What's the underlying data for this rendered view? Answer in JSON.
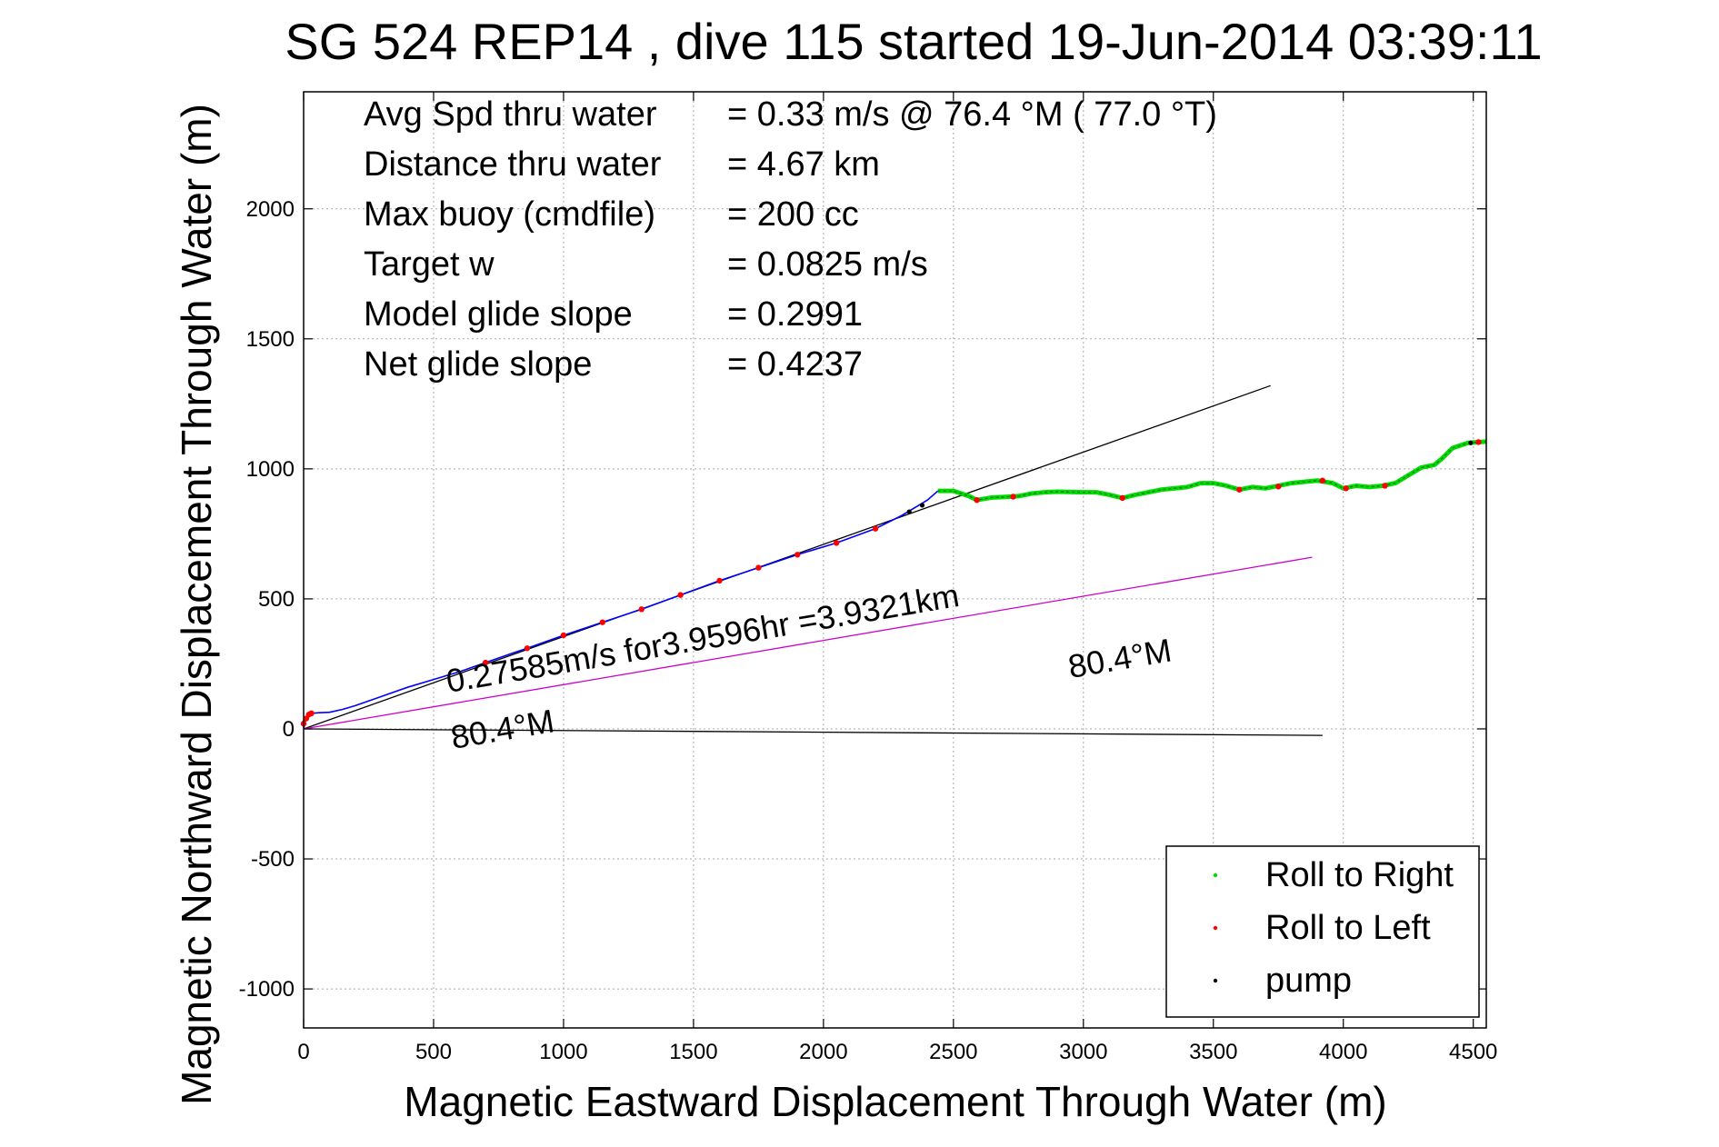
{
  "chart_data": {
    "type": "line",
    "title": "SG 524   REP14  , dive 115 started 19-Jun-2014 03:39:11",
    "xlabel": "Magnetic Eastward Displacement Through Water (m)",
    "ylabel": "Magnetic Northward Displacement Through Water (m)",
    "xlim": [
      0,
      4550
    ],
    "ylim": [
      -1150,
      2450
    ],
    "grid": true,
    "xticks": [
      0,
      500,
      1000,
      1500,
      2000,
      2500,
      3000,
      3500,
      4000,
      4500
    ],
    "yticks": [
      -1000,
      -500,
      0,
      500,
      1000,
      1500,
      2000
    ],
    "info_lines": [
      {
        "label": "Avg Spd thru water",
        "value": "=  0.33 m/s @  76.4 °M ( 77.0 °T)"
      },
      {
        "label": "Distance thru water",
        "value": "=  4.67 km"
      },
      {
        "label": "Max buoy (cmdfile)",
        "value": "= 200 cc"
      },
      {
        "label": "Target w",
        "value": "= 0.0825 m/s"
      },
      {
        "label": "Model glide slope",
        "value": "= 0.2991"
      },
      {
        "label": "Net glide slope",
        "value": "= 0.4237"
      }
    ],
    "annotations": {
      "current": "0.27585m/s for3.9596hr =3.9321km",
      "heading_a": "80.4°M",
      "heading_b": "80.4°M"
    },
    "legend": {
      "placement": "bottom-right",
      "entries": [
        {
          "label": "Roll to Right",
          "color": "#00dd00"
        },
        {
          "label": "Roll to Left",
          "color": "#ff0000"
        },
        {
          "label": "pump",
          "color": "#000000"
        }
      ]
    },
    "reference_lines": [
      {
        "color": "#000000",
        "points": [
          [
            0,
            0
          ],
          [
            3720,
            1320
          ]
        ]
      },
      {
        "color": "#cc00cc",
        "points": [
          [
            0,
            0
          ],
          [
            3880,
            660
          ]
        ]
      },
      {
        "color": "#000000",
        "points": [
          [
            0,
            0
          ],
          [
            3920,
            -25
          ]
        ]
      }
    ],
    "series": [
      {
        "role": "track_blue",
        "color": "#0000ff",
        "points": [
          [
            0,
            0
          ],
          [
            10,
            45
          ],
          [
            30,
            60
          ],
          [
            60,
            62
          ],
          [
            100,
            64
          ],
          [
            150,
            75
          ],
          [
            200,
            90
          ],
          [
            300,
            125
          ],
          [
            400,
            160
          ],
          [
            500,
            190
          ],
          [
            600,
            220
          ],
          [
            700,
            255
          ],
          [
            800,
            290
          ],
          [
            860,
            310
          ],
          [
            1000,
            360
          ],
          [
            1150,
            410
          ],
          [
            1300,
            460
          ],
          [
            1450,
            515
          ],
          [
            1600,
            570
          ],
          [
            1750,
            620
          ],
          [
            1900,
            670
          ],
          [
            2050,
            715
          ],
          [
            2200,
            770
          ],
          [
            2300,
            820
          ],
          [
            2400,
            880
          ],
          [
            2440,
            915
          ]
        ]
      },
      {
        "role": "roll_right_track",
        "color": "#00dd00",
        "points": [
          [
            2440,
            915
          ],
          [
            2500,
            915
          ],
          [
            2560,
            895
          ],
          [
            2590,
            880
          ],
          [
            2650,
            890
          ],
          [
            2700,
            892
          ],
          [
            2750,
            895
          ],
          [
            2800,
            905
          ],
          [
            2850,
            910
          ],
          [
            2900,
            912
          ],
          [
            3000,
            910
          ],
          [
            3050,
            910
          ],
          [
            3100,
            900
          ],
          [
            3150,
            888
          ],
          [
            3200,
            900
          ],
          [
            3300,
            920
          ],
          [
            3400,
            930
          ],
          [
            3450,
            945
          ],
          [
            3500,
            945
          ],
          [
            3550,
            935
          ],
          [
            3600,
            920
          ],
          [
            3650,
            930
          ],
          [
            3700,
            925
          ],
          [
            3750,
            935
          ],
          [
            3800,
            945
          ],
          [
            3850,
            950
          ],
          [
            3900,
            955
          ],
          [
            3960,
            945
          ],
          [
            4000,
            925
          ],
          [
            4050,
            935
          ],
          [
            4100,
            930
          ],
          [
            4150,
            935
          ],
          [
            4200,
            945
          ],
          [
            4250,
            975
          ],
          [
            4300,
            1005
          ],
          [
            4350,
            1015
          ],
          [
            4380,
            1040
          ],
          [
            4420,
            1080
          ],
          [
            4480,
            1100
          ],
          [
            4550,
            1105
          ]
        ]
      }
    ],
    "roll_left_points": [
      [
        0,
        20
      ],
      [
        10,
        40
      ],
      [
        20,
        55
      ],
      [
        30,
        60
      ],
      [
        700,
        255
      ],
      [
        860,
        310
      ],
      [
        1000,
        360
      ],
      [
        1150,
        410
      ],
      [
        1300,
        460
      ],
      [
        1450,
        515
      ],
      [
        1600,
        570
      ],
      [
        1750,
        620
      ],
      [
        1900,
        670
      ],
      [
        2050,
        715
      ],
      [
        2200,
        770
      ],
      [
        2590,
        880
      ],
      [
        2730,
        893
      ],
      [
        3150,
        888
      ],
      [
        3600,
        920
      ],
      [
        3750,
        932
      ],
      [
        3920,
        955
      ],
      [
        4010,
        925
      ],
      [
        4160,
        935
      ],
      [
        4520,
        1103
      ]
    ],
    "pump_points": [
      [
        2330,
        835
      ],
      [
        2380,
        860
      ],
      [
        4490,
        1100
      ]
    ]
  }
}
